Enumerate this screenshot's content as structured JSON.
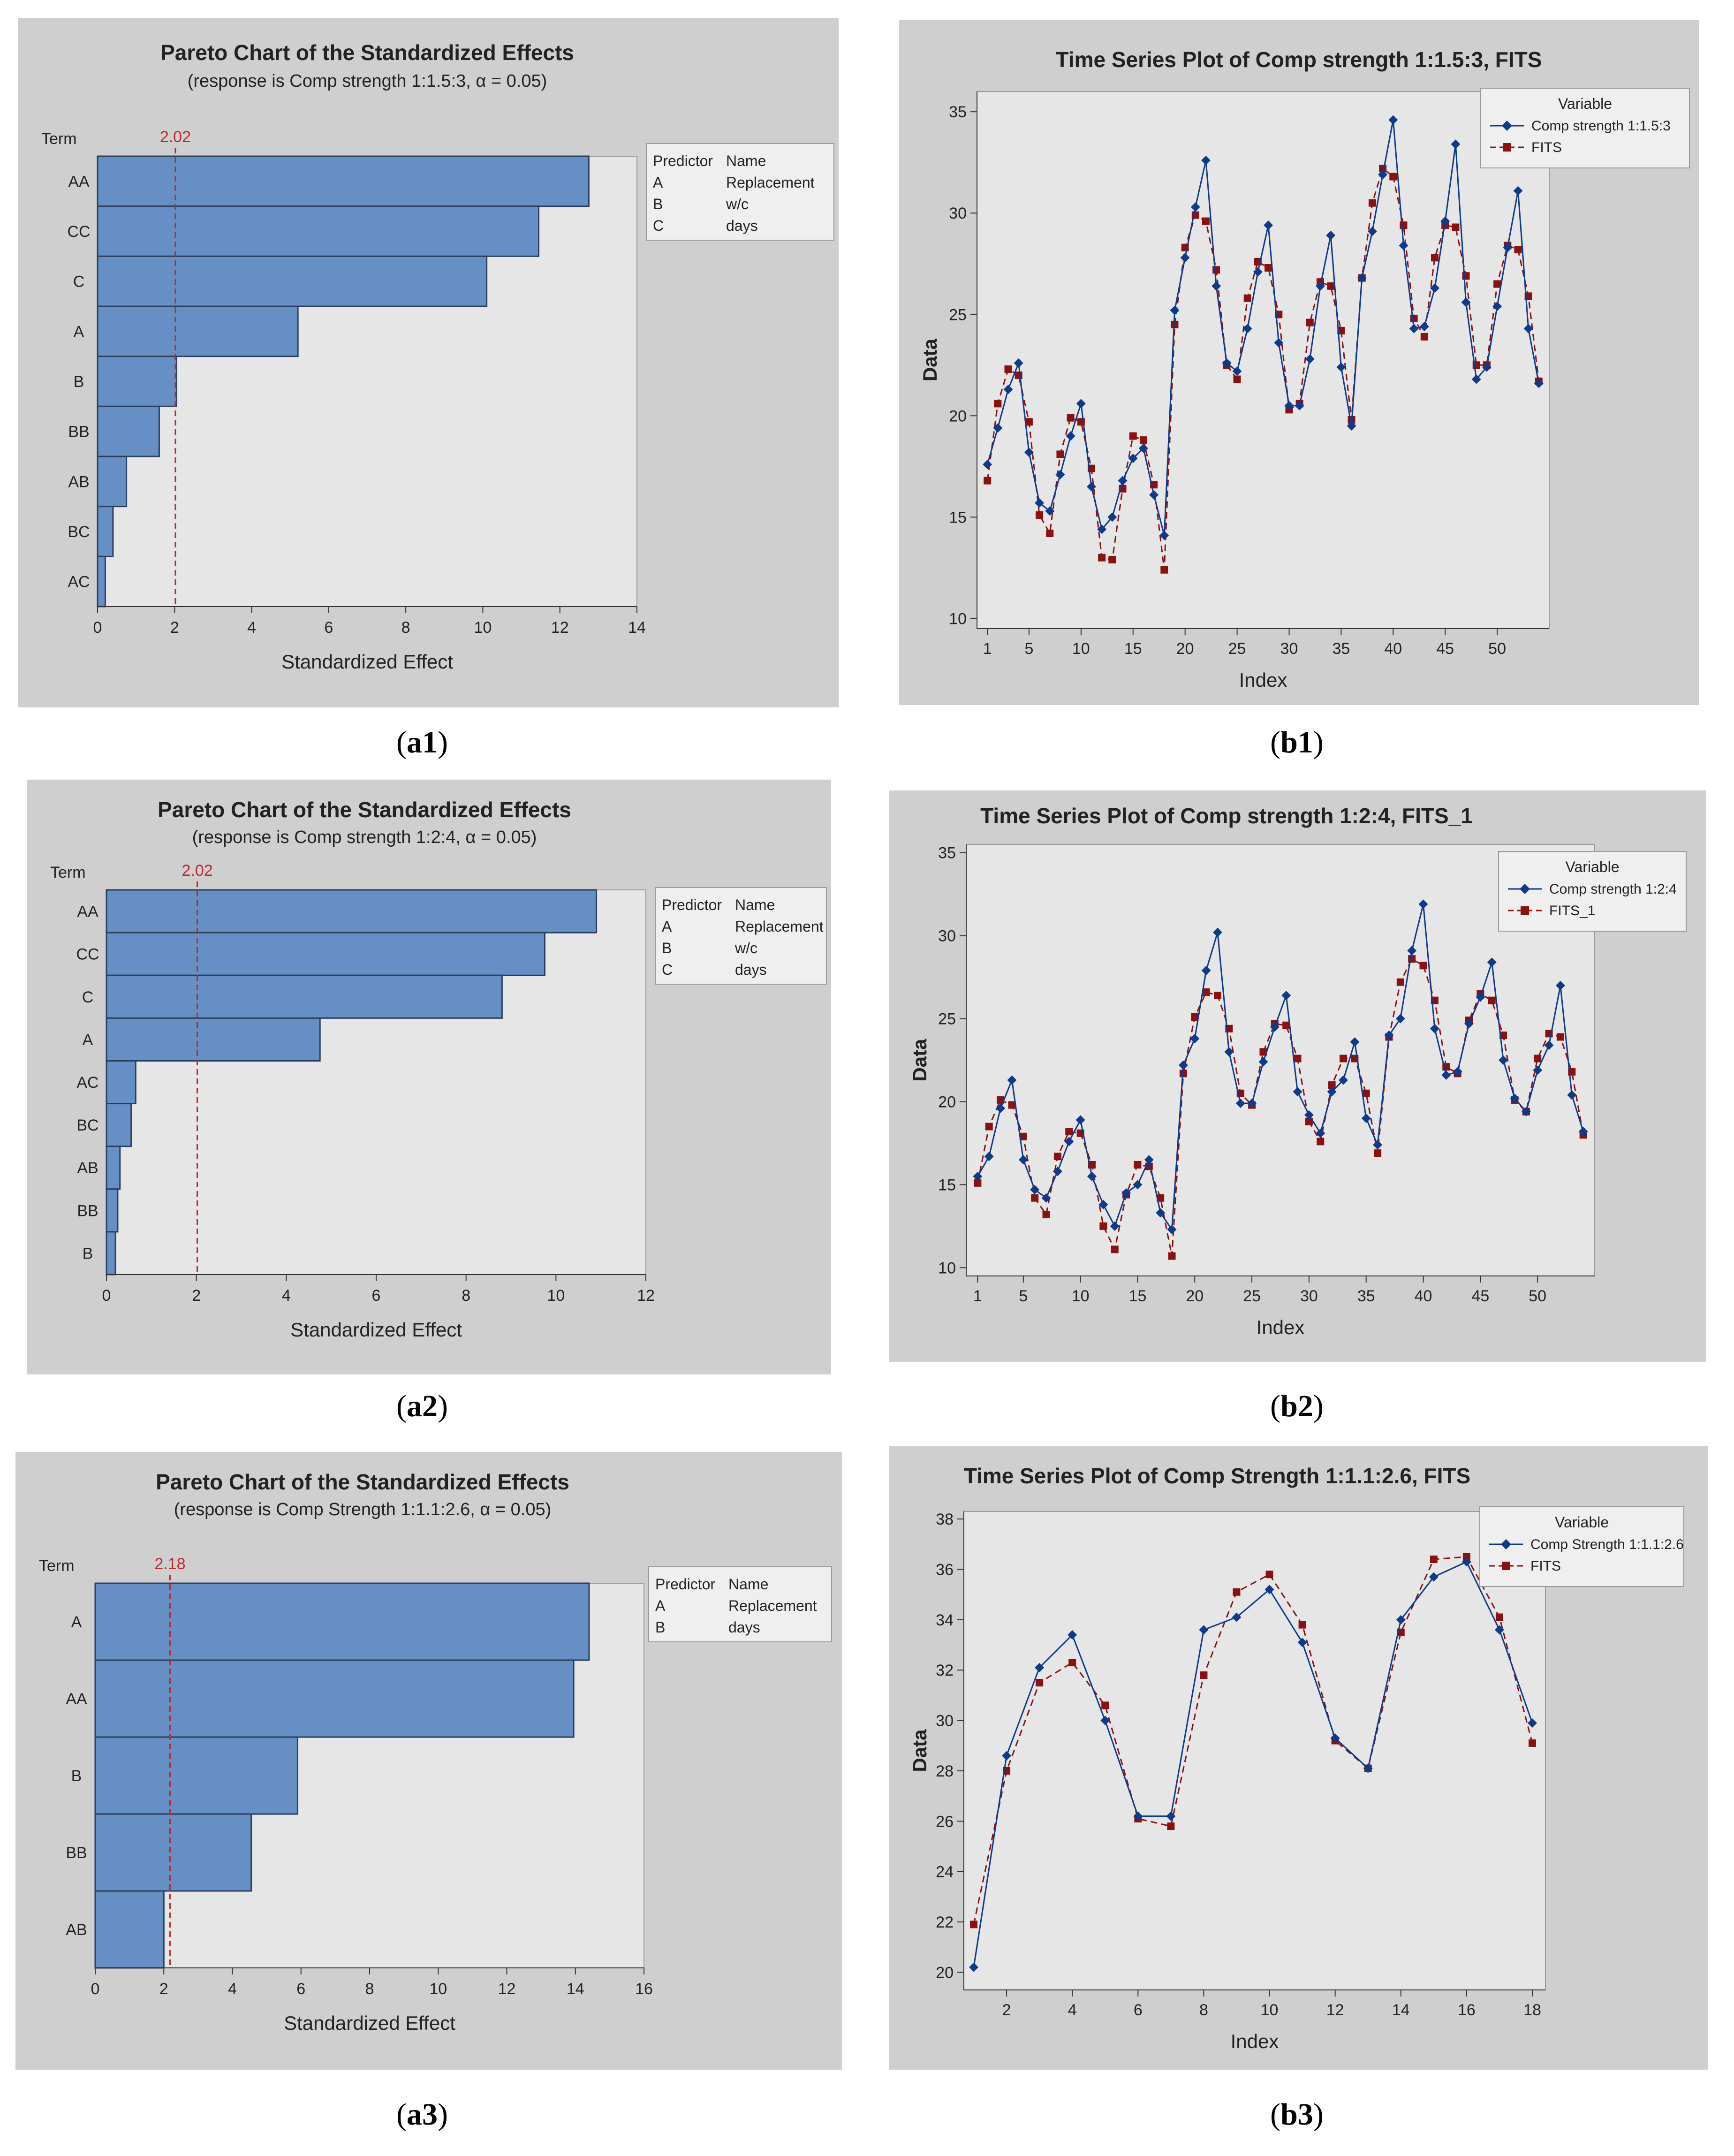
{
  "colors": {
    "panel_bg": "#cfcfcf",
    "plot_bg": "#e6e6e6",
    "bar_fill": "#6690c5",
    "bar_stroke": "#2b3f5c",
    "ref_line": "#c0262c",
    "series_actual": "#0d3a8a",
    "series_fits": "#8b1111",
    "axis": "#333333"
  },
  "captions": [
    {
      "letter": "a",
      "num": "1"
    },
    {
      "letter": "b",
      "num": "1"
    },
    {
      "letter": "a",
      "num": "2"
    },
    {
      "letter": "b",
      "num": "2"
    },
    {
      "letter": "a",
      "num": "3"
    },
    {
      "letter": "b",
      "num": "3"
    }
  ],
  "chart_data": [
    {
      "type": "bar",
      "orientation": "horizontal",
      "title": "Pareto Chart of the Standardized Effects",
      "subtitle": "(response is Comp strength 1:1.5:3, α = 0.05)",
      "xlabel": "Standardized Effect",
      "ylabel": "Term",
      "xlim": [
        0,
        14
      ],
      "xticks": [
        0,
        2,
        4,
        6,
        8,
        10,
        12,
        14
      ],
      "ref_value": 2.02,
      "ref_label": "2.02",
      "categories": [
        "AA",
        "CC",
        "C",
        "A",
        "B",
        "BB",
        "AB",
        "BC",
        "AC"
      ],
      "values": [
        12.75,
        11.45,
        10.1,
        5.2,
        2.05,
        1.6,
        0.75,
        0.4,
        0.2
      ],
      "legend": {
        "headers": [
          "Predictor",
          "Name"
        ],
        "rows": [
          [
            "A",
            "Replacement"
          ],
          [
            "B",
            "w/c"
          ],
          [
            "C",
            "days"
          ]
        ]
      }
    },
    {
      "type": "line",
      "title": "Time Series Plot of Comp strength 1:1.5:3, FITS",
      "xlabel": "Index",
      "ylabel": "Data",
      "xlim": [
        0,
        55
      ],
      "ylim": [
        9.5,
        36
      ],
      "xticks": [
        1,
        5,
        10,
        15,
        20,
        25,
        30,
        35,
        40,
        45,
        50
      ],
      "yticks": [
        10,
        15,
        20,
        25,
        30,
        35
      ],
      "legend_title": "Variable",
      "series": [
        {
          "name": "Comp strength 1:1.5:3",
          "style": "solid",
          "marker": "diamond",
          "values": [
            17.6,
            19.4,
            21.3,
            22.6,
            18.2,
            15.7,
            15.3,
            17.1,
            19.0,
            20.6,
            16.5,
            14.4,
            15.0,
            16.8,
            17.9,
            18.4,
            16.1,
            14.1,
            25.2,
            27.8,
            30.3,
            32.6,
            26.4,
            22.6,
            22.2,
            24.3,
            27.1,
            29.4,
            23.6,
            20.5,
            20.5,
            22.8,
            26.4,
            28.9,
            22.4,
            19.5,
            26.8,
            29.1,
            31.9,
            34.6,
            28.4,
            24.3,
            24.4,
            26.3,
            29.6,
            33.4,
            25.6,
            21.8,
            22.4,
            25.4,
            28.3,
            31.1,
            24.3,
            21.6
          ]
        },
        {
          "name": "FITS",
          "style": "dashed",
          "marker": "square",
          "values": [
            16.8,
            20.6,
            22.3,
            22.0,
            19.7,
            15.1,
            14.2,
            18.1,
            19.9,
            19.7,
            17.4,
            13.0,
            12.9,
            16.4,
            19.0,
            18.8,
            16.6,
            12.4,
            24.5,
            28.3,
            29.9,
            29.6,
            27.2,
            22.5,
            21.8,
            25.8,
            27.6,
            27.3,
            25.0,
            20.3,
            20.6,
            24.6,
            26.6,
            26.4,
            24.2,
            19.8,
            26.8,
            30.5,
            32.2,
            31.8,
            29.4,
            24.8,
            23.9,
            27.8,
            29.4,
            29.3,
            26.9,
            22.5,
            22.5,
            26.5,
            28.4,
            28.2,
            25.9,
            21.7
          ]
        }
      ]
    },
    {
      "type": "bar",
      "orientation": "horizontal",
      "title": "Pareto Chart of the Standardized Effects",
      "subtitle": "(response is Comp strength 1:2:4, α = 0.05)",
      "xlabel": "Standardized Effect",
      "ylabel": "Term",
      "xlim": [
        0,
        12
      ],
      "xticks": [
        0,
        2,
        4,
        6,
        8,
        10,
        12
      ],
      "ref_value": 2.02,
      "ref_label": "2.02",
      "categories": [
        "AA",
        "CC",
        "C",
        "A",
        "AC",
        "BC",
        "AB",
        "BB",
        "B"
      ],
      "values": [
        10.9,
        9.75,
        8.8,
        4.75,
        0.65,
        0.55,
        0.3,
        0.25,
        0.2
      ],
      "legend": {
        "headers": [
          "Predictor",
          "Name"
        ],
        "rows": [
          [
            "A",
            "Replacement"
          ],
          [
            "B",
            "w/c"
          ],
          [
            "C",
            "days"
          ]
        ]
      }
    },
    {
      "type": "line",
      "title": "Time Series Plot of Comp strength 1:2:4, FITS_1",
      "xlabel": "Index",
      "ylabel": "Data",
      "xlim": [
        0,
        55
      ],
      "ylim": [
        9.5,
        35.5
      ],
      "xticks": [
        1,
        5,
        10,
        15,
        20,
        25,
        30,
        35,
        40,
        45,
        50
      ],
      "yticks": [
        10,
        15,
        20,
        25,
        30,
        35
      ],
      "legend_title": "Variable",
      "series": [
        {
          "name": "Comp strength 1:2:4",
          "style": "solid",
          "marker": "diamond",
          "values": [
            15.5,
            16.7,
            19.6,
            21.3,
            16.5,
            14.7,
            14.2,
            15.8,
            17.6,
            18.9,
            15.5,
            13.8,
            12.5,
            14.5,
            15.0,
            16.5,
            13.3,
            12.3,
            22.2,
            23.8,
            27.9,
            30.2,
            23.0,
            19.9,
            19.9,
            22.4,
            24.5,
            26.4,
            20.6,
            19.2,
            18.1,
            20.6,
            21.3,
            23.6,
            19.0,
            17.4,
            24.0,
            25.0,
            29.1,
            31.9,
            24.4,
            21.6,
            21.8,
            24.7,
            26.3,
            28.4,
            22.5,
            20.2,
            19.4,
            21.9,
            23.4,
            27.0,
            20.4,
            18.2
          ]
        },
        {
          "name": "FITS_1",
          "style": "dashed",
          "marker": "square",
          "values": [
            15.1,
            18.5,
            20.1,
            19.8,
            17.9,
            14.2,
            13.2,
            16.7,
            18.2,
            18.1,
            16.2,
            12.5,
            11.1,
            14.4,
            16.2,
            16.1,
            14.2,
            10.7,
            21.7,
            25.1,
            26.6,
            26.4,
            24.4,
            20.5,
            19.8,
            23.0,
            24.7,
            24.6,
            22.6,
            18.8,
            17.6,
            21.0,
            22.6,
            22.6,
            20.5,
            16.9,
            23.9,
            27.2,
            28.6,
            28.2,
            26.1,
            22.1,
            21.7,
            24.9,
            26.5,
            26.1,
            24.0,
            20.1,
            19.4,
            22.6,
            24.1,
            23.9,
            21.8,
            18.0
          ]
        }
      ]
    },
    {
      "type": "bar",
      "orientation": "horizontal",
      "title": "Pareto Chart of the Standardized Effects",
      "subtitle": "(response is Comp Strength 1:1.1:2.6, α = 0.05)",
      "xlabel": "Standardized Effect",
      "ylabel": "Term",
      "xlim": [
        0,
        16
      ],
      "xticks": [
        0,
        2,
        4,
        6,
        8,
        10,
        12,
        14,
        16
      ],
      "ref_value": 2.18,
      "ref_label": "2.18",
      "categories": [
        "A",
        "AA",
        "B",
        "BB",
        "AB"
      ],
      "values": [
        14.4,
        13.95,
        5.9,
        4.55,
        2.0
      ],
      "legend": {
        "headers": [
          "Predictor",
          "Name"
        ],
        "rows": [
          [
            "A",
            "Replacement"
          ],
          [
            "B",
            "days"
          ]
        ]
      }
    },
    {
      "type": "line",
      "title": "Time Series Plot of Comp Strength 1:1.1:2.6, FITS",
      "xlabel": "Index",
      "ylabel": "Data",
      "xlim": [
        0.7,
        18.4
      ],
      "ylim": [
        19.3,
        38.3
      ],
      "xticks": [
        2,
        4,
        6,
        8,
        10,
        12,
        14,
        16,
        18
      ],
      "yticks": [
        20,
        22,
        24,
        26,
        28,
        30,
        32,
        34,
        36,
        38
      ],
      "legend_title": "Variable",
      "series": [
        {
          "name": "Comp Strength 1:1.1:2.6",
          "style": "solid",
          "marker": "diamond",
          "values": [
            20.2,
            28.6,
            32.1,
            33.4,
            30.0,
            26.2,
            26.2,
            33.6,
            34.1,
            35.2,
            33.1,
            29.3,
            28.1,
            34.0,
            35.7,
            36.3,
            33.6,
            29.9
          ]
        },
        {
          "name": "FITS",
          "style": "dashed",
          "marker": "square",
          "values": [
            21.9,
            28.0,
            31.5,
            32.3,
            30.6,
            26.1,
            25.8,
            31.8,
            35.1,
            35.8,
            33.8,
            29.2,
            28.1,
            33.5,
            36.4,
            36.5,
            34.1,
            29.1
          ]
        }
      ]
    }
  ]
}
